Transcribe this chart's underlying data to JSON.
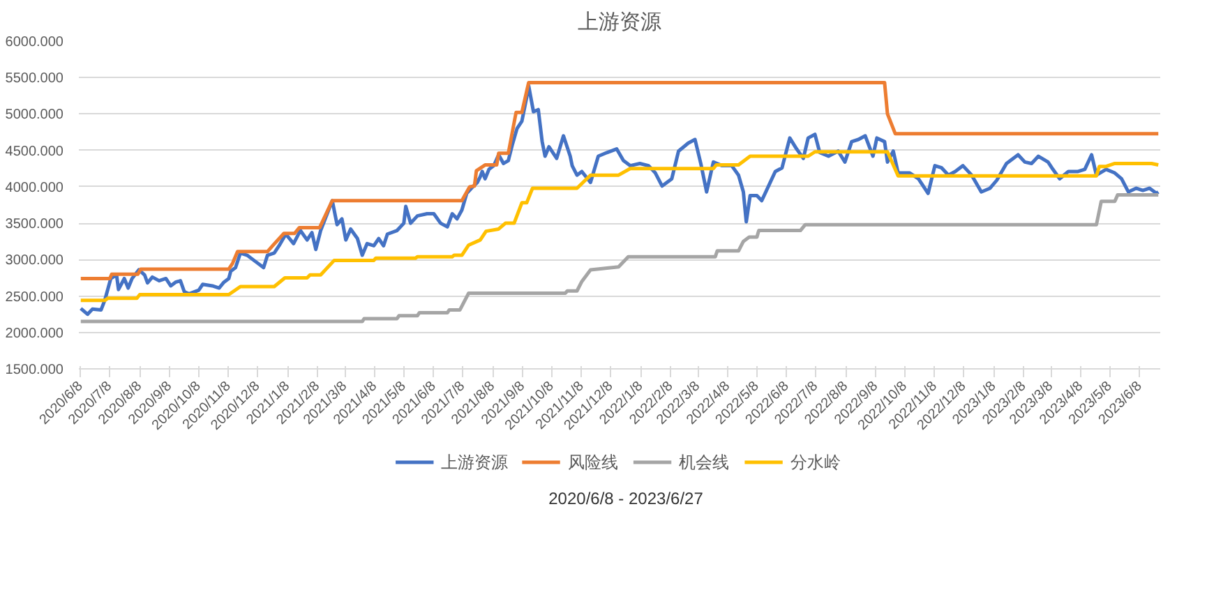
{
  "chart_data": {
    "type": "line",
    "title": "上游资源",
    "legend": "bottom",
    "grid": "y",
    "line_style": "solid",
    "marker": "none",
    "annotations": [
      "2020/6/8 - 2023/6/27"
    ],
    "xlim": [
      "2020-06-06",
      "2023-06-29"
    ],
    "xticks": [
      {
        "value": "2020-06-08",
        "label": "2020/6/8"
      },
      {
        "value": "2020-07-08",
        "label": "2020/7/8"
      },
      {
        "value": "2020-08-08",
        "label": "2020/8/8"
      },
      {
        "value": "2020-09-08",
        "label": "2020/9/8"
      },
      {
        "value": "2020-10-08",
        "label": "2020/10/8"
      },
      {
        "value": "2020-11-08",
        "label": "2020/11/8"
      },
      {
        "value": "2020-12-08",
        "label": "2020/12/8"
      },
      {
        "value": "2021-01-08",
        "label": "2021/1/8"
      },
      {
        "value": "2021-02-08",
        "label": "2021/2/8"
      },
      {
        "value": "2021-03-08",
        "label": "2021/3/8"
      },
      {
        "value": "2021-04-08",
        "label": "2021/4/8"
      },
      {
        "value": "2021-05-08",
        "label": "2021/5/8"
      },
      {
        "value": "2021-06-08",
        "label": "2021/6/8"
      },
      {
        "value": "2021-07-08",
        "label": "2021/7/8"
      },
      {
        "value": "2021-08-08",
        "label": "2021/8/8"
      },
      {
        "value": "2021-09-08",
        "label": "2021/9/8"
      },
      {
        "value": "2021-10-08",
        "label": "2021/10/8"
      },
      {
        "value": "2021-11-08",
        "label": "2021/11/8"
      },
      {
        "value": "2021-12-08",
        "label": "2021/12/8"
      },
      {
        "value": "2022-01-08",
        "label": "2022/1/8"
      },
      {
        "value": "2022-02-08",
        "label": "2022/2/8"
      },
      {
        "value": "2022-03-08",
        "label": "2022/3/8"
      },
      {
        "value": "2022-04-08",
        "label": "2022/4/8"
      },
      {
        "value": "2022-05-08",
        "label": "2022/5/8"
      },
      {
        "value": "2022-06-08",
        "label": "2022/6/8"
      },
      {
        "value": "2022-07-08",
        "label": "2022/7/8"
      },
      {
        "value": "2022-08-08",
        "label": "2022/8/8"
      },
      {
        "value": "2022-09-08",
        "label": "2022/9/8"
      },
      {
        "value": "2022-10-08",
        "label": "2022/10/8"
      },
      {
        "value": "2022-11-08",
        "label": "2022/11/8"
      },
      {
        "value": "2022-12-08",
        "label": "2022/12/8"
      },
      {
        "value": "2023-01-08",
        "label": "2023/1/8"
      },
      {
        "value": "2023-02-08",
        "label": "2023/2/8"
      },
      {
        "value": "2023-03-08",
        "label": "2023/3/8"
      },
      {
        "value": "2023-04-08",
        "label": "2023/4/8"
      },
      {
        "value": "2023-05-08",
        "label": "2023/5/8"
      },
      {
        "value": "2023-06-08",
        "label": "2023/6/8"
      }
    ],
    "ylim": [
      1500,
      6000
    ],
    "yticks": [
      {
        "value": 1500,
        "label": "1500.000"
      },
      {
        "value": 2000,
        "label": "2000.000"
      },
      {
        "value": 2500,
        "label": "2500.000"
      },
      {
        "value": 3000,
        "label": "3000.000"
      },
      {
        "value": 3500,
        "label": "3500.000"
      },
      {
        "value": 4000,
        "label": "4000.000"
      },
      {
        "value": 4500,
        "label": "4500.000"
      },
      {
        "value": 5000,
        "label": "5000.000"
      },
      {
        "value": 5500,
        "label": "5500.000"
      },
      {
        "value": 6000,
        "label": "6000.000"
      }
    ],
    "series": [
      {
        "name": "上游资源",
        "color": "#4472c4",
        "x": [
          "2020-06-08",
          "2020-06-15",
          "2020-06-20",
          "2020-06-29",
          "2020-07-03",
          "2020-07-09",
          "2020-07-15",
          "2020-07-17",
          "2020-07-23",
          "2020-07-27",
          "2020-07-31",
          "2020-08-07",
          "2020-08-13",
          "2020-08-16",
          "2020-08-21",
          "2020-08-28",
          "2020-09-04",
          "2020-09-09",
          "2020-09-14",
          "2020-09-19",
          "2020-09-23",
          "2020-09-28",
          "2020-10-08",
          "2020-10-12",
          "2020-10-22",
          "2020-10-29",
          "2020-11-03",
          "2020-11-08",
          "2020-11-10",
          "2020-11-15",
          "2020-11-20",
          "2020-11-27",
          "2020-12-04",
          "2020-12-14",
          "2020-12-18",
          "2020-12-25",
          "2020-12-30",
          "2021-01-06",
          "2021-01-14",
          "2021-01-21",
          "2021-01-28",
          "2021-02-02",
          "2021-02-06",
          "2021-02-11",
          "2021-02-23",
          "2021-02-28",
          "2021-03-05",
          "2021-03-09",
          "2021-03-14",
          "2021-03-21",
          "2021-03-26",
          "2021-03-31",
          "2021-04-07",
          "2021-04-12",
          "2021-04-17",
          "2021-04-21",
          "2021-05-01",
          "2021-05-08",
          "2021-05-10",
          "2021-05-15",
          "2021-05-22",
          "2021-06-01",
          "2021-06-08",
          "2021-06-15",
          "2021-06-22",
          "2021-06-27",
          "2021-07-02",
          "2021-07-07",
          "2021-07-12",
          "2021-07-19",
          "2021-07-23",
          "2021-07-26",
          "2021-07-28",
          "2021-07-31",
          "2021-08-04",
          "2021-08-09",
          "2021-08-14",
          "2021-08-19",
          "2021-08-24",
          "2021-08-28",
          "2021-09-02",
          "2021-09-07",
          "2021-09-12",
          "2021-09-14",
          "2021-09-19",
          "2021-09-24",
          "2021-09-28",
          "2021-10-01",
          "2021-10-05",
          "2021-10-13",
          "2021-10-20",
          "2021-10-27",
          "2021-10-29",
          "2021-11-03",
          "2021-11-08",
          "2021-11-17",
          "2021-11-25",
          "2021-12-04",
          "2021-12-14",
          "2021-12-21",
          "2021-12-28",
          "2022-01-07",
          "2022-01-16",
          "2022-01-23",
          "2022-01-30",
          "2022-02-09",
          "2022-02-16",
          "2022-02-26",
          "2022-03-05",
          "2022-03-11",
          "2022-03-17",
          "2022-03-24",
          "2022-04-02",
          "2022-04-12",
          "2022-04-19",
          "2022-04-24",
          "2022-04-27",
          "2022-05-01",
          "2022-05-08",
          "2022-05-13",
          "2022-05-20",
          "2022-05-27",
          "2022-06-03",
          "2022-06-11",
          "2022-06-18",
          "2022-06-25",
          "2022-06-30",
          "2022-07-07",
          "2022-07-12",
          "2022-07-21",
          "2022-07-31",
          "2022-08-07",
          "2022-08-14",
          "2022-08-21",
          "2022-08-28",
          "2022-09-05",
          "2022-09-09",
          "2022-09-17",
          "2022-09-20",
          "2022-09-26",
          "2022-10-01",
          "2022-10-13",
          "2022-10-22",
          "2022-11-01",
          "2022-11-08",
          "2022-11-15",
          "2022-11-22",
          "2022-11-29",
          "2022-12-07",
          "2022-12-16",
          "2022-12-26",
          "2023-01-04",
          "2023-01-11",
          "2023-01-21",
          "2023-02-02",
          "2023-02-09",
          "2023-02-16",
          "2023-02-23",
          "2023-03-05",
          "2023-03-10",
          "2023-03-17",
          "2023-03-26",
          "2023-04-05",
          "2023-04-12",
          "2023-04-19",
          "2023-04-24",
          "2023-05-04",
          "2023-05-13",
          "2023-05-20",
          "2023-05-27",
          "2023-06-04",
          "2023-06-11",
          "2023-06-18",
          "2023-06-25",
          "2023-06-27"
        ],
        "values": [
          2330,
          2250,
          2320,
          2310,
          2450,
          2740,
          2790,
          2590,
          2740,
          2610,
          2740,
          2860,
          2790,
          2680,
          2760,
          2710,
          2740,
          2640,
          2690,
          2710,
          2560,
          2530,
          2580,
          2660,
          2640,
          2610,
          2690,
          2740,
          2840,
          2890,
          3090,
          3060,
          2990,
          2890,
          3060,
          3090,
          3190,
          3350,
          3220,
          3400,
          3270,
          3370,
          3140,
          3400,
          3810,
          3480,
          3560,
          3270,
          3420,
          3290,
          3060,
          3220,
          3190,
          3290,
          3190,
          3350,
          3400,
          3500,
          3730,
          3500,
          3600,
          3630,
          3630,
          3500,
          3450,
          3630,
          3560,
          3680,
          3910,
          4010,
          4060,
          4140,
          4210,
          4110,
          4240,
          4290,
          4440,
          4320,
          4360,
          4570,
          4800,
          4900,
          5230,
          5390,
          5030,
          5060,
          4620,
          4420,
          4550,
          4390,
          4700,
          4420,
          4290,
          4160,
          4210,
          4060,
          4420,
          4470,
          4520,
          4360,
          4290,
          4320,
          4290,
          4190,
          4010,
          4110,
          4490,
          4600,
          4650,
          4320,
          3930,
          4340,
          4290,
          4290,
          4160,
          3930,
          3520,
          3880,
          3880,
          3810,
          4010,
          4210,
          4260,
          4670,
          4520,
          4390,
          4670,
          4720,
          4470,
          4420,
          4490,
          4340,
          4620,
          4650,
          4700,
          4420,
          4670,
          4620,
          4340,
          4490,
          4190,
          4190,
          4110,
          3910,
          4290,
          4260,
          4160,
          4210,
          4290,
          4160,
          3930,
          3980,
          4090,
          4320,
          4440,
          4340,
          4320,
          4420,
          4340,
          4240,
          4110,
          4210,
          4210,
          4240,
          4440,
          4160,
          4240,
          4190,
          4110,
          3930,
          3980,
          3950,
          3980,
          3910,
          3930
        ]
      },
      {
        "name": "风险线",
        "color": "#ed7d31",
        "x": [
          "2020-06-08",
          "2020-07-08",
          "2020-07-10",
          "2020-08-06",
          "2020-08-09",
          "2020-11-08",
          "2020-11-12",
          "2020-11-17",
          "2020-12-18",
          "2020-12-24",
          "2021-01-04",
          "2021-01-15",
          "2021-01-20",
          "2021-02-10",
          "2021-02-23",
          "2021-07-07",
          "2021-07-15",
          "2021-07-20",
          "2021-07-22",
          "2021-07-31",
          "2021-08-12",
          "2021-08-14",
          "2021-08-24",
          "2021-09-01",
          "2021-09-07",
          "2021-09-14",
          "2022-09-17",
          "2022-09-20",
          "2022-09-28",
          "2023-06-27"
        ],
        "values": [
          2740,
          2740,
          2800,
          2800,
          2870,
          2870,
          2950,
          3110,
          3110,
          3200,
          3360,
          3360,
          3440,
          3440,
          3810,
          3810,
          4000,
          4010,
          4220,
          4300,
          4300,
          4460,
          4460,
          5020,
          5020,
          5430,
          5430,
          5000,
          4730,
          4730
        ]
      },
      {
        "name": "机会线",
        "color": "#a5a5a5",
        "x": [
          "2020-06-08",
          "2021-03-26",
          "2021-03-28",
          "2021-05-01",
          "2021-05-03",
          "2021-05-22",
          "2021-05-24",
          "2021-06-22",
          "2021-06-24",
          "2021-07-05",
          "2021-07-14",
          "2021-10-22",
          "2021-10-24",
          "2021-11-03",
          "2021-11-08",
          "2021-11-17",
          "2021-12-16",
          "2021-12-26",
          "2022-03-26",
          "2022-03-28",
          "2022-04-19",
          "2022-04-24",
          "2022-04-30",
          "2022-05-08",
          "2022-05-10",
          "2022-06-22",
          "2022-06-27",
          "2023-04-24",
          "2023-04-29",
          "2023-05-13",
          "2023-05-16",
          "2023-06-27"
        ],
        "values": [
          2150,
          2150,
          2190,
          2190,
          2230,
          2230,
          2270,
          2270,
          2310,
          2310,
          2540,
          2540,
          2570,
          2570,
          2700,
          2860,
          2900,
          3040,
          3040,
          3120,
          3120,
          3250,
          3310,
          3310,
          3400,
          3400,
          3480,
          3480,
          3800,
          3800,
          3890,
          3890
        ]
      },
      {
        "name": "分水岭",
        "color": "#ffc000",
        "x": [
          "2020-06-08",
          "2020-07-03",
          "2020-07-06",
          "2020-08-05",
          "2020-08-08",
          "2020-11-08",
          "2020-11-20",
          "2020-12-25",
          "2021-01-05",
          "2021-01-28",
          "2021-01-31",
          "2021-02-11",
          "2021-02-25",
          "2021-04-07",
          "2021-04-09",
          "2021-05-20",
          "2021-05-22",
          "2021-06-27",
          "2021-06-29",
          "2021-07-07",
          "2021-07-14",
          "2021-07-26",
          "2021-08-01",
          "2021-08-14",
          "2021-08-21",
          "2021-08-30",
          "2021-09-07",
          "2021-09-12",
          "2021-09-18",
          "2021-11-03",
          "2021-11-17",
          "2021-12-16",
          "2021-12-28",
          "2022-03-24",
          "2022-03-27",
          "2022-04-19",
          "2022-05-01",
          "2022-06-30",
          "2022-07-07",
          "2022-09-20",
          "2022-10-01",
          "2023-04-24",
          "2023-04-27",
          "2023-05-04",
          "2023-05-13",
          "2023-06-20",
          "2023-06-27"
        ],
        "values": [
          2440,
          2440,
          2470,
          2470,
          2520,
          2520,
          2630,
          2630,
          2750,
          2750,
          2790,
          2790,
          2990,
          2990,
          3020,
          3020,
          3040,
          3040,
          3060,
          3060,
          3200,
          3270,
          3390,
          3420,
          3500,
          3500,
          3780,
          3780,
          3980,
          3980,
          4160,
          4160,
          4250,
          4250,
          4300,
          4300,
          4420,
          4420,
          4480,
          4480,
          4150,
          4150,
          4280,
          4280,
          4320,
          4320,
          4300
        ]
      }
    ]
  }
}
